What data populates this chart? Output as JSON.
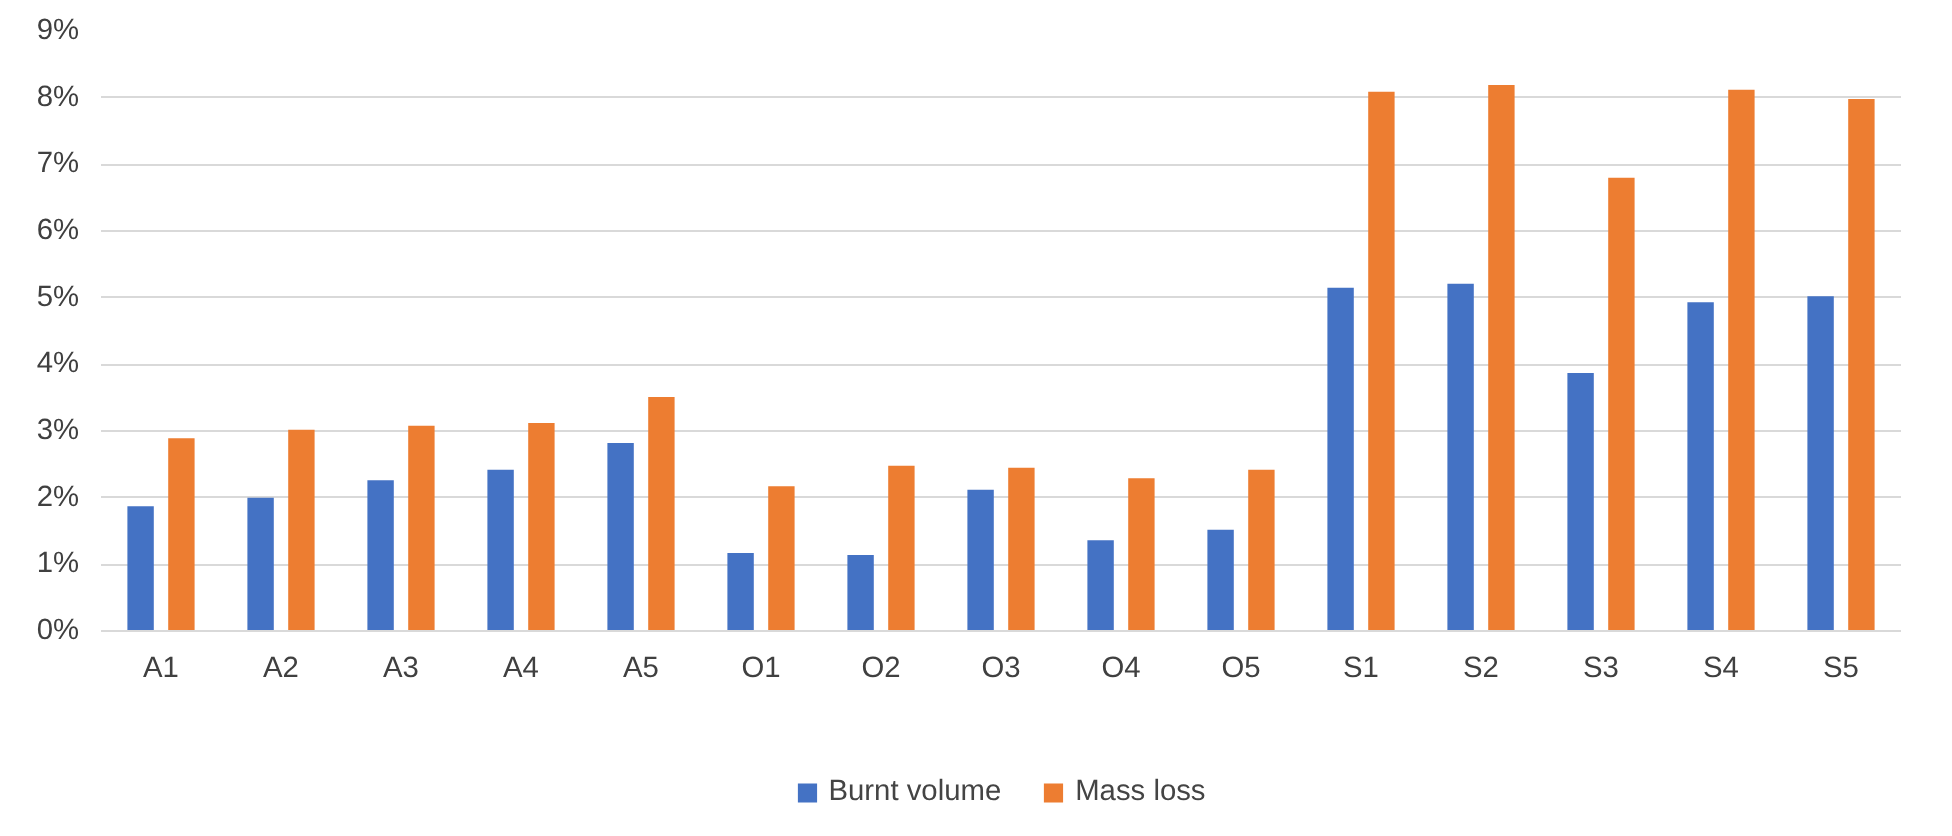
{
  "chart_data": {
    "type": "bar",
    "categories": [
      "A1",
      "A2",
      "A3",
      "A4",
      "A5",
      "O1",
      "O2",
      "O3",
      "O4",
      "O5",
      "S1",
      "S2",
      "S3",
      "S4",
      "S5"
    ],
    "series": [
      {
        "name": "Burnt volume",
        "color": "#4472c4",
        "values": [
          1.87,
          2.0,
          2.26,
          2.42,
          2.82,
          1.17,
          1.14,
          2.12,
          1.36,
          1.52,
          5.15,
          5.21,
          3.87,
          4.93,
          5.02
        ]
      },
      {
        "name": "Mass loss",
        "color": "#ed7d31",
        "values": [
          2.89,
          3.02,
          3.08,
          3.12,
          3.51,
          2.17,
          2.48,
          2.45,
          2.29,
          2.42,
          8.09,
          8.19,
          6.8,
          8.12,
          7.98
        ]
      }
    ],
    "ylim": [
      0,
      9
    ],
    "yticks": [
      {
        "value": 0,
        "label": "0%"
      },
      {
        "value": 1,
        "label": "1%"
      },
      {
        "value": 2,
        "label": "2%"
      },
      {
        "value": 3,
        "label": "3%"
      },
      {
        "value": 4,
        "label": "4%"
      },
      {
        "value": 5,
        "label": "5%"
      },
      {
        "value": 6,
        "label": "6%"
      },
      {
        "value": 7,
        "label": "7%"
      },
      {
        "value": 8,
        "label": "8%"
      },
      {
        "value": 9,
        "label": "9%"
      }
    ],
    "grid": "y",
    "legend": "bottom"
  }
}
